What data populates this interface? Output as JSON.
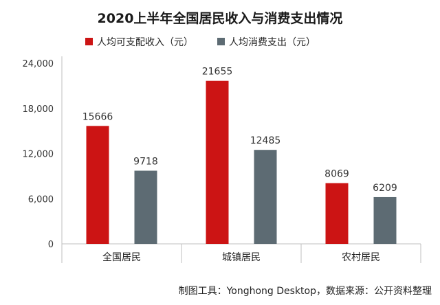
{
  "chart_data": {
    "type": "bar",
    "title": "2020上半年全国居民收入与消费支出情况",
    "categories": [
      "全国居民",
      "城镇居民",
      "农村居民"
    ],
    "series": [
      {
        "name": "人均可支配收入（元）",
        "values": [
          15666,
          21655,
          8069
        ],
        "color": "#cc1414"
      },
      {
        "name": "人均消费支出（元）",
        "values": [
          9718,
          12485,
          6209
        ],
        "color": "#5d6b73"
      }
    ],
    "ylim": [
      0,
      24000
    ],
    "yticks": [
      0,
      6000,
      12000,
      18000,
      24000
    ],
    "ytick_labels": [
      "0",
      "6,000",
      "12,000",
      "18,000",
      "24,000"
    ],
    "legend_position": "top",
    "grid": false
  },
  "footer": "制图工具：Yonghong Desktop，数据来源：公开资料整理"
}
